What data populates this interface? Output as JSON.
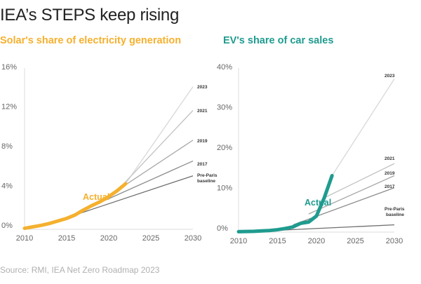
{
  "title": "IEA’s STEPS keep rising",
  "source": "Source: RMI, IEA Net Zero Roadmap 2023",
  "colors": {
    "solar": "#f5b02e",
    "ev": "#1f9b8f"
  },
  "chart_data": [
    {
      "type": "line",
      "title": "Solar's share of electricity generation",
      "xlim": [
        2010,
        2030
      ],
      "ylim": [
        0,
        16
      ],
      "x_ticks": [
        {
          "v": 2010,
          "label": "2010"
        },
        {
          "v": 2015,
          "label": "2015"
        },
        {
          "v": 2020,
          "label": "2020"
        },
        {
          "v": 2025,
          "label": "2025"
        },
        {
          "v": 2030,
          "label": "2030"
        }
      ],
      "y_ticks": [
        {
          "v": 0,
          "label": "0%"
        },
        {
          "v": 4,
          "label": "4%"
        },
        {
          "v": 8,
          "label": "8%"
        },
        {
          "v": 12,
          "label": "12%"
        },
        {
          "v": 16,
          "label": "16%"
        }
      ],
      "actual_label": "Actual",
      "actual": {
        "x": [
          2010,
          2011,
          2012,
          2013,
          2014,
          2015,
          2016,
          2017,
          2018,
          2019,
          2020,
          2021,
          2022
        ],
        "y": [
          0.1,
          0.25,
          0.4,
          0.6,
          0.85,
          1.1,
          1.45,
          1.95,
          2.4,
          2.8,
          3.3,
          3.9,
          4.6
        ]
      },
      "projections": [
        {
          "name": "2023",
          "x": [
            2022,
            2030
          ],
          "y": [
            4.6,
            14.4
          ],
          "color": "#d8d8d8"
        },
        {
          "name": "2021",
          "x": [
            2021,
            2030
          ],
          "y": [
            3.9,
            12.0
          ],
          "color": "#c2c2c2"
        },
        {
          "name": "2019",
          "x": [
            2019,
            2030
          ],
          "y": [
            2.8,
            9.0
          ],
          "color": "#a6a6a6"
        },
        {
          "name": "2017",
          "x": [
            2017,
            2030
          ],
          "y": [
            1.95,
            6.9
          ],
          "color": "#8c8c8c"
        },
        {
          "name": "Pre-Paris baseline",
          "x": [
            2016,
            2030
          ],
          "y": [
            1.45,
            5.4
          ],
          "color": "#6e6e6e"
        }
      ]
    },
    {
      "type": "line",
      "title": "EV's share of car sales",
      "xlim": [
        2010,
        2030
      ],
      "ylim": [
        0,
        40
      ],
      "x_ticks": [
        {
          "v": 2010,
          "label": "2010"
        },
        {
          "v": 2015,
          "label": "2015"
        },
        {
          "v": 2020,
          "label": "2020"
        },
        {
          "v": 2025,
          "label": "2025"
        },
        {
          "v": 2030,
          "label": "2030"
        }
      ],
      "y_ticks": [
        {
          "v": 0,
          "label": "0%"
        },
        {
          "v": 10,
          "label": "10%"
        },
        {
          "v": 20,
          "label": "20%"
        },
        {
          "v": 30,
          "label": "30%"
        },
        {
          "v": 40,
          "label": "40%"
        }
      ],
      "actual_label": "Actual",
      "actual": {
        "x": [
          2010,
          2011,
          2012,
          2013,
          2014,
          2015,
          2016,
          2017,
          2018,
          2019,
          2020,
          2021,
          2022
        ],
        "y": [
          0.1,
          0.15,
          0.2,
          0.3,
          0.4,
          0.6,
          0.9,
          1.3,
          2.2,
          2.5,
          4.0,
          8.5,
          14.0
        ]
      },
      "projections": [
        {
          "name": "2023",
          "x": [
            2022,
            2030
          ],
          "y": [
            14.0,
            38.0
          ],
          "color": "#d8d8d8"
        },
        {
          "name": "2021",
          "x": [
            2021,
            2030
          ],
          "y": [
            8.5,
            17.0
          ],
          "color": "#c2c2c2"
        },
        {
          "name": "2019",
          "x": [
            2019,
            2030
          ],
          "y": [
            4.5,
            14.0
          ],
          "color": "#a6a6a6"
        },
        {
          "name": "2017",
          "x": [
            2017,
            2030
          ],
          "y": [
            1.8,
            11.0
          ],
          "color": "#8c8c8c"
        },
        {
          "name": "Pre-Paris baseline",
          "x": [
            2010,
            2030
          ],
          "y": [
            0.0,
            1.8
          ],
          "color": "#6e6e6e"
        }
      ]
    }
  ]
}
